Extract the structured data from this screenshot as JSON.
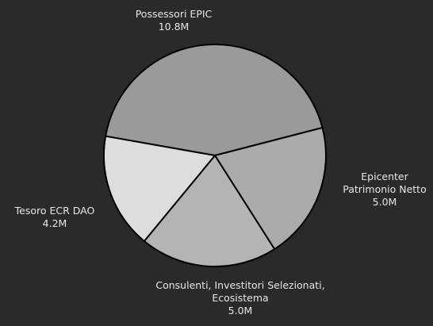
{
  "chart_data": {
    "type": "pie",
    "slices": [
      {
        "label_lines": [
          "Possessori EPIC"
        ],
        "value_label": "10.8M",
        "value": 10.8,
        "color": "#9a9a9a"
      },
      {
        "label_lines": [
          "Epicenter",
          "Patrimonio Netto"
        ],
        "value_label": "5.0M",
        "value": 5.0,
        "color": "#ababab"
      },
      {
        "label_lines": [
          "Consulenti, Investitori Selezionati,",
          "Ecosistema"
        ],
        "value_label": "5.0M",
        "value": 5.0,
        "color": "#b4b4b4"
      },
      {
        "label_lines": [
          "Tesoro ECR DAO"
        ],
        "value_label": "4.2M",
        "value": 4.2,
        "color": "#dddddd"
      }
    ],
    "start_angle_deg": 190,
    "direction": "clockwise",
    "background": "#2a2a2a",
    "edge_color": "#000000",
    "text_color": "#e6e6e6"
  }
}
